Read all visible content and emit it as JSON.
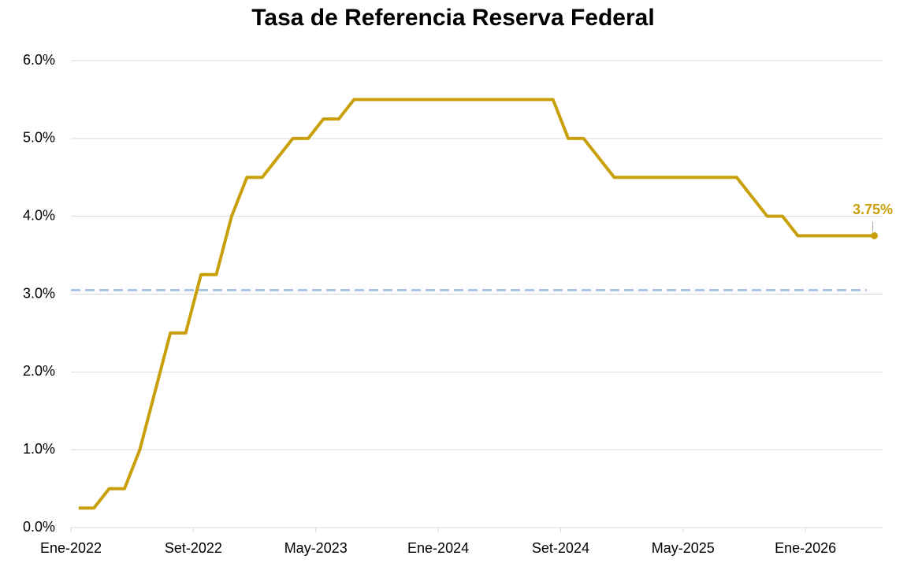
{
  "chart_data": {
    "type": "line",
    "title": "Tasa de Referencia Reserva Federal",
    "categories": [
      "Ene-2022",
      null,
      null,
      null,
      null,
      null,
      null,
      null,
      "Set-2022",
      null,
      null,
      null,
      null,
      null,
      null,
      null,
      "May-2023",
      null,
      null,
      null,
      null,
      null,
      null,
      null,
      "Ene-2024",
      null,
      null,
      null,
      null,
      null,
      null,
      null,
      "Set-2024",
      null,
      null,
      null,
      null,
      null,
      null,
      null,
      "May-2025",
      null,
      null,
      null,
      null,
      null,
      null,
      null,
      "Ene-2026",
      null,
      null,
      null,
      null
    ],
    "series": [
      {
        "name": "Tasa de Referencia",
        "color": "#c9a00c",
        "values": [
          0.25,
          0.25,
          0.5,
          0.5,
          1.0,
          1.75,
          2.5,
          2.5,
          3.25,
          3.25,
          4.0,
          4.5,
          4.5,
          4.75,
          5.0,
          5.0,
          5.25,
          5.25,
          5.5,
          5.5,
          5.5,
          5.5,
          5.5,
          5.5,
          5.5,
          5.5,
          5.5,
          5.5,
          5.5,
          5.5,
          5.5,
          5.5,
          5.0,
          5.0,
          4.75,
          4.5,
          4.5,
          4.5,
          4.5,
          4.5,
          4.5,
          4.5,
          4.5,
          4.5,
          4.25,
          4.0,
          4.0,
          3.75,
          3.75,
          3.75,
          3.75,
          3.75,
          3.75
        ],
        "value_labels": [
          null,
          null,
          null,
          null,
          null,
          null,
          null,
          null,
          null,
          null,
          null,
          null,
          null,
          null,
          null,
          null,
          null,
          null,
          null,
          null,
          null,
          null,
          null,
          null,
          null,
          null,
          null,
          null,
          null,
          null,
          null,
          null,
          null,
          null,
          null,
          null,
          null,
          null,
          null,
          null,
          null,
          null,
          null,
          null,
          null,
          null,
          null,
          null,
          null,
          null,
          null,
          null,
          "3.75%"
        ]
      }
    ],
    "reference_line": {
      "value": 3.05,
      "color": "#a9c4e4"
    },
    "ylim": [
      0,
      6
    ],
    "yticks": [
      {
        "value": 0,
        "label": "0.0%"
      },
      {
        "value": 1,
        "label": "1.0%"
      },
      {
        "value": 2,
        "label": "2.0%"
      },
      {
        "value": 3,
        "label": "3.0%"
      },
      {
        "value": 4,
        "label": "4.0%"
      },
      {
        "value": 5,
        "label": "5.0%"
      },
      {
        "value": 6,
        "label": "6.0%"
      }
    ],
    "grid": true
  }
}
